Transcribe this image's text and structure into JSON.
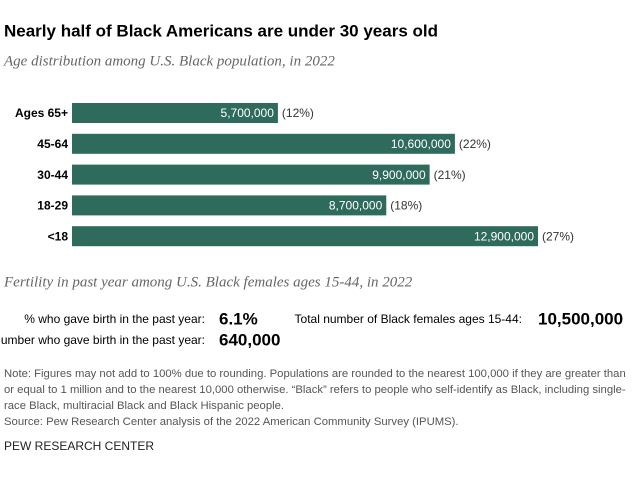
{
  "chart_data": {
    "type": "bar",
    "orientation": "horizontal",
    "title": "Nearly half of Black Americans are under 30 years old",
    "subtitle": "Age distribution among U.S. Black population, in 2022",
    "categories": [
      "Ages 65+",
      "45-64",
      "30-44",
      "18-29",
      "<18"
    ],
    "values": [
      5700000,
      10600000,
      9900000,
      8700000,
      12900000
    ],
    "value_labels": [
      "5,700,000",
      "10,600,000",
      "9,900,000",
      "8,700,000",
      "12,900,000"
    ],
    "shares": [
      12,
      22,
      21,
      18,
      27
    ],
    "share_labels": [
      "(12%)",
      "(22%)",
      "(21%)",
      "(18%)",
      "(27%)"
    ],
    "color": "#2f6b5c"
  },
  "fertility": {
    "subtitle": "Fertility in past year among U.S. Black females ages 15-44, in 2022",
    "stats": [
      {
        "label": "% who gave birth in the past year:",
        "value": "6.1%"
      },
      {
        "label": "Number who gave birth in the past year:",
        "value": "640,000"
      },
      {
        "label": "Total number of Black females ages 15-44:",
        "value": "10,500,000"
      }
    ]
  },
  "note": "Note: Figures may not add to 100% due to rounding. Populations are rounded to the nearest 100,000 if they are greater than or equal to 1 million and to the nearest 10,000 otherwise. “Black” refers to people who self-identify as Black, including single-race Black, multiracial Black and Black Hispanic people.",
  "source": "Source: Pew Research Center analysis of the 2022 American Community Survey (IPUMS).",
  "footer": "PEW RESEARCH CENTER"
}
